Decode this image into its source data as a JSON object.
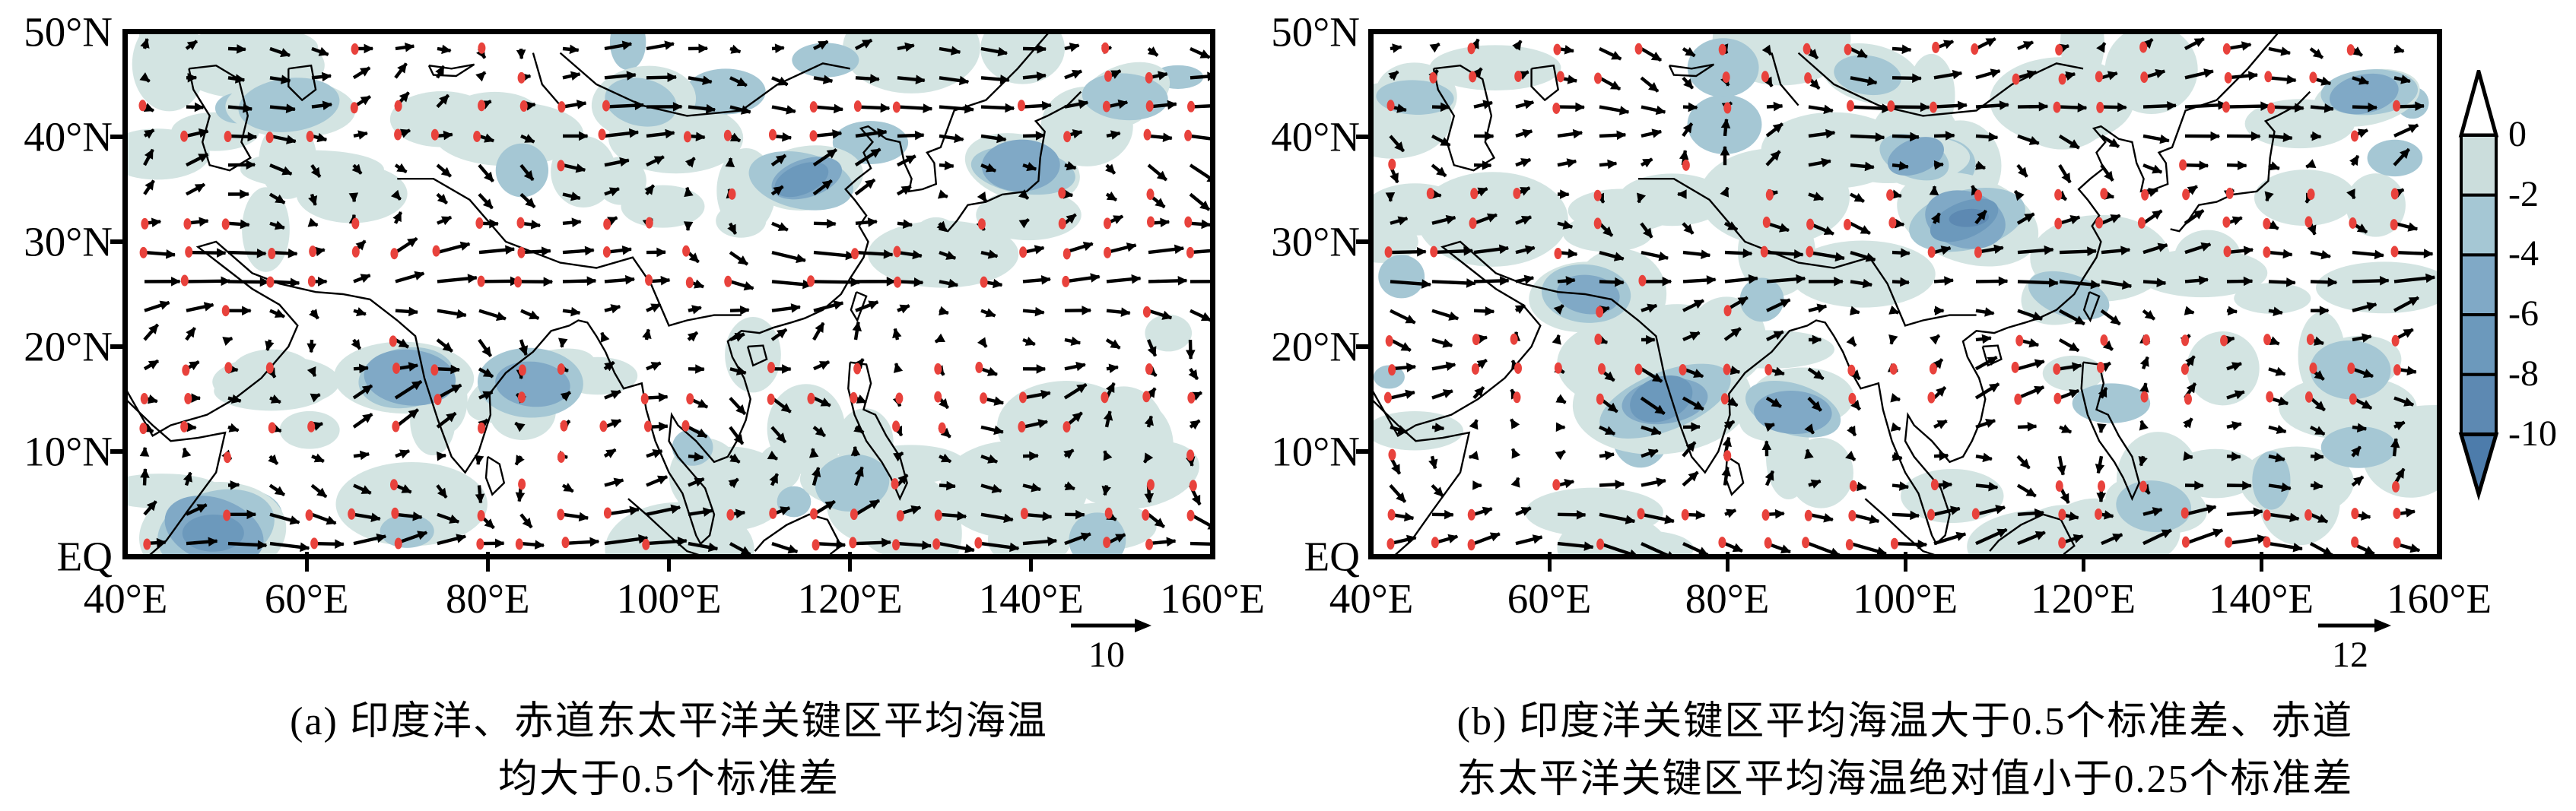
{
  "colors": {
    "vector": "#000000",
    "significance_dot": "#e8423c",
    "coastline": "#000000",
    "frame": "#000000",
    "shade_levels": [
      "#d3e4e2",
      "#a5c7d4",
      "#80a9c6",
      "#6c99bc",
      "#5d89b2"
    ]
  },
  "colorbar": {
    "labels": [
      "0",
      "-2",
      "-4",
      "-6",
      "-8",
      "-10"
    ],
    "segment_colors": [
      "#cbdddc",
      "#a5c7d4",
      "#80a9c6",
      "#6c99bc",
      "#5d89b2"
    ],
    "above_color": "#ffffff",
    "below_color": "#4d7cab"
  },
  "chart_data": [
    {
      "type": "heatmap",
      "subtype": "vector_field_map",
      "panel_label": "a",
      "caption_lines": [
        "(a) 印度洋、赤道东太平洋关键区平均海温",
        "均大于0.5个标准差"
      ],
      "x_axis": {
        "ticks": [
          "40°E",
          "60°E",
          "80°E",
          "100°E",
          "120°E",
          "140°E",
          "160°E"
        ],
        "range_deg": [
          40,
          160
        ]
      },
      "y_axis": {
        "ticks_display": [
          "50°N",
          "40°N",
          "30°N",
          "20°N",
          "10°N",
          "EQ"
        ],
        "range_deg": [
          0,
          50
        ]
      },
      "colorbar_levels": [
        0,
        -2,
        -4,
        -6,
        -8,
        -10
      ],
      "reference_vector_label": "10",
      "reference_vector_value": 10,
      "legend_position": "right",
      "grid": false,
      "anomaly_centers": [
        {
          "lon": 115,
          "lat": 36,
          "level": -8,
          "radius_px": 72
        },
        {
          "lon": 50,
          "lat": 2.5,
          "level": -8,
          "radius_px": 88
        },
        {
          "lon": 58,
          "lat": 43,
          "level": -4,
          "radius_px": 75
        },
        {
          "lon": 71,
          "lat": 17,
          "level": -6,
          "radius_px": 80
        },
        {
          "lon": 85,
          "lat": 16.5,
          "level": -6,
          "radius_px": 75
        },
        {
          "lon": 97,
          "lat": 43,
          "level": -4,
          "radius_px": 60
        },
        {
          "lon": 139,
          "lat": 37,
          "level": -6,
          "radius_px": 70
        },
        {
          "lon": 150,
          "lat": 44,
          "level": -4,
          "radius_px": 55
        },
        {
          "lon": 120,
          "lat": 7,
          "level": -4,
          "radius_px": 60
        },
        {
          "lon": 152,
          "lat": 8,
          "level": -2,
          "radius_px": 70
        }
      ]
    },
    {
      "type": "heatmap",
      "subtype": "vector_field_map",
      "panel_label": "b",
      "caption_lines": [
        "(b) 印度洋关键区平均海温大于0.5个标准差、赤道",
        "东太平洋关键区平均海温绝对值小于0.25个标准差"
      ],
      "x_axis": {
        "ticks": [
          "40°E",
          "60°E",
          "80°E",
          "100°E",
          "120°E",
          "140°E",
          "160°E"
        ],
        "range_deg": [
          40,
          160
        ]
      },
      "y_axis": {
        "ticks_display": [
          "50°N",
          "40°N",
          "30°N",
          "20°N",
          "10°N",
          "EQ"
        ],
        "range_deg": [
          0,
          50
        ]
      },
      "colorbar_levels": [
        0,
        -2,
        -4,
        -6,
        -8,
        -10
      ],
      "reference_vector_label": "12",
      "reference_vector_value": 12,
      "legend_position": "right",
      "grid": false,
      "anomaly_centers": [
        {
          "lon": 73,
          "lat": 15,
          "level": -8,
          "radius_px": 92
        },
        {
          "lon": 87,
          "lat": 14,
          "level": -6,
          "radius_px": 65
        },
        {
          "lon": 64,
          "lat": 25,
          "level": -6,
          "radius_px": 70
        },
        {
          "lon": 107,
          "lat": 32,
          "level": -10,
          "radius_px": 85
        },
        {
          "lon": 101,
          "lat": 38,
          "level": -6,
          "radius_px": 60
        },
        {
          "lon": 118,
          "lat": 25,
          "level": -4,
          "radius_px": 55
        },
        {
          "lon": 152,
          "lat": 44,
          "level": -6,
          "radius_px": 62
        },
        {
          "lon": 45,
          "lat": 44,
          "level": -4,
          "radius_px": 55
        },
        {
          "lon": 96,
          "lat": 46,
          "level": -4,
          "radius_px": 55
        },
        {
          "lon": 150,
          "lat": 18,
          "level": -4,
          "radius_px": 60
        },
        {
          "lon": 128,
          "lat": 5,
          "level": -4,
          "radius_px": 60
        }
      ]
    }
  ]
}
